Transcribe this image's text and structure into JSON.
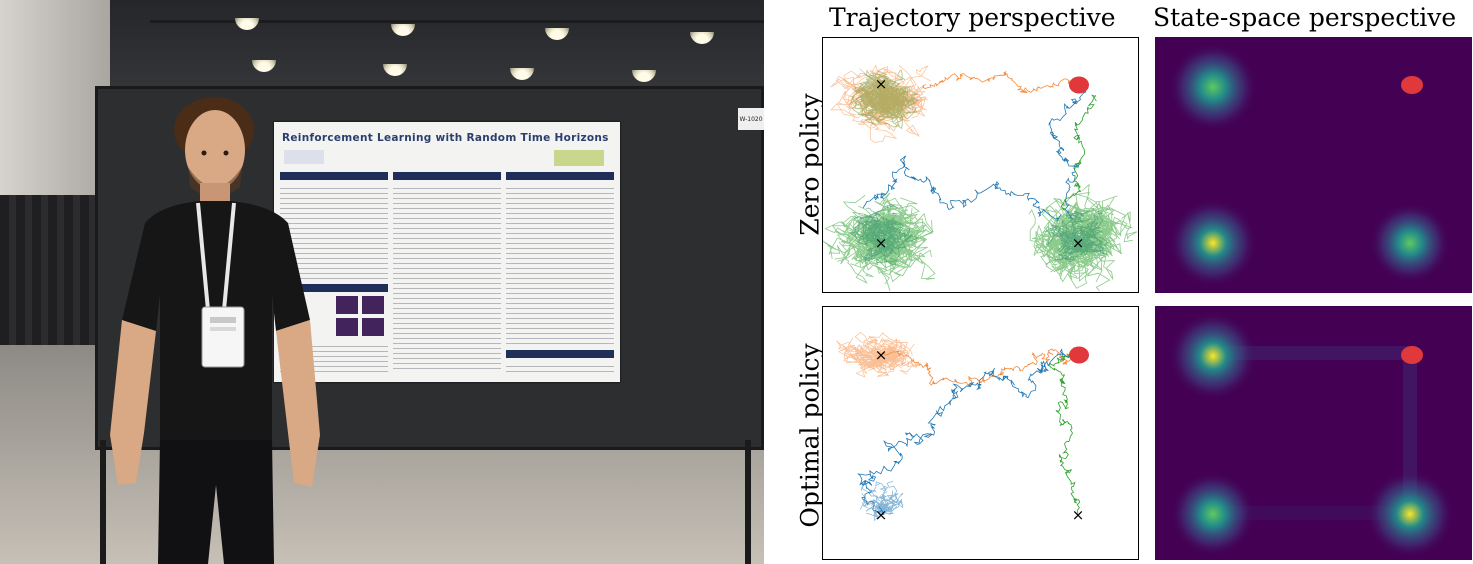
{
  "figure": {
    "columns": [
      {
        "title": "Trajectory perspective"
      },
      {
        "title": "State-space perspective"
      }
    ],
    "rows": [
      {
        "label": "Zero policy"
      },
      {
        "label": "Optimal policy"
      }
    ]
  },
  "photo": {
    "poster_title": "Reinforcement Learning with Random Time Horizons",
    "booth_tag": "W-1020"
  },
  "colors": {
    "orange_traj": "#f58a3c",
    "green_traj": "#2ca02c",
    "blue_traj": "#1f77b4",
    "target": "#e0383b",
    "viridis_bg": "#440154",
    "viridis_mid": "#21918c",
    "viridis_high": "#fde725"
  },
  "markers": {
    "start_symbol": "×",
    "target_symbol": "●"
  }
}
